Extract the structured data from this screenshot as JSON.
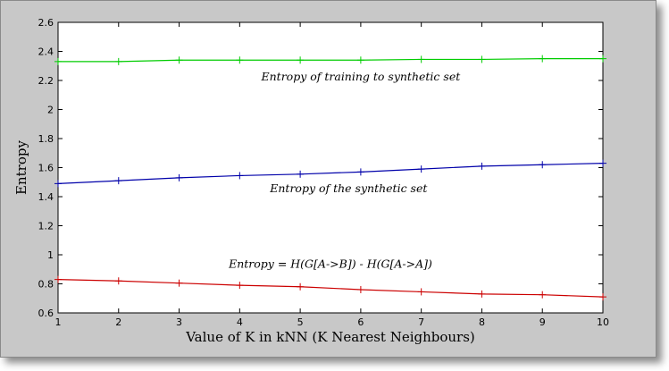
{
  "chart_data": {
    "type": "line",
    "title": "",
    "xlabel": "Value of K in kNN (K Nearest Neighbours)",
    "ylabel": "Entropy",
    "xlim": [
      1,
      10
    ],
    "ylim": [
      0.6,
      2.6
    ],
    "xticks": [
      "1",
      "2",
      "3",
      "4",
      "5",
      "6",
      "7",
      "8",
      "9",
      "10"
    ],
    "yticks": [
      "0.6",
      "0.8",
      "1",
      "1.2",
      "1.4",
      "1.6",
      "1.8",
      "2",
      "2.2",
      "2.4",
      "2.6"
    ],
    "x": [
      1,
      2,
      3,
      4,
      5,
      6,
      7,
      8,
      9,
      10
    ],
    "grid": false,
    "series": [
      {
        "color": "#00cc00",
        "values": [
          2.33,
          2.33,
          2.34,
          2.34,
          2.34,
          2.34,
          2.345,
          2.345,
          2.35,
          2.35
        ]
      },
      {
        "color": "#0000aa",
        "values": [
          1.49,
          1.51,
          1.53,
          1.545,
          1.555,
          1.57,
          1.59,
          1.61,
          1.62,
          1.63
        ]
      },
      {
        "color": "#cc0000",
        "values": [
          0.83,
          0.82,
          0.805,
          0.79,
          0.78,
          0.76,
          0.745,
          0.73,
          0.725,
          0.71
        ]
      }
    ],
    "annotations": [
      {
        "text": "Entropy of training to synthetic set",
        "x": 6.0,
        "y": 2.2
      },
      {
        "text": "Entropy of the synthetic set",
        "x": 5.8,
        "y": 1.43
      },
      {
        "text": "Entropy = H(G[A->B]) - H(G[A->A])",
        "x": 5.5,
        "y": 0.91
      }
    ]
  }
}
